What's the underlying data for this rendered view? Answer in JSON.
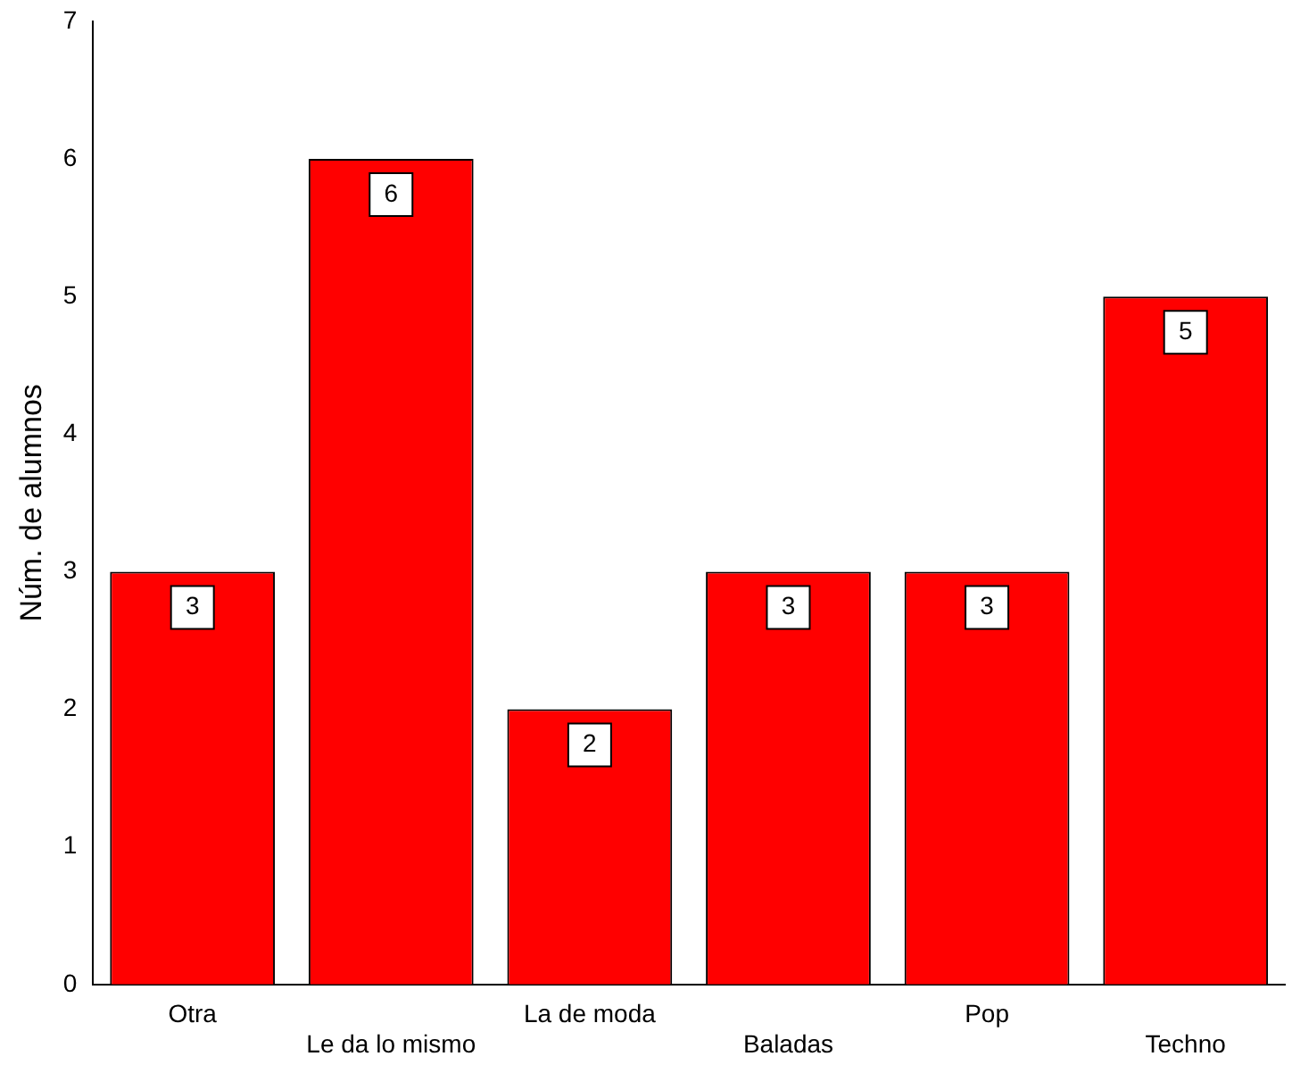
{
  "chart_data": {
    "type": "bar",
    "ylabel": "Núm. de alumnos",
    "categories": [
      "Otra",
      "Le da lo mismo",
      "La de moda",
      "Baladas",
      "Pop",
      "Techno"
    ],
    "values": [
      3,
      6,
      2,
      3,
      3,
      5
    ],
    "color": "#ff0000",
    "ylim": [
      0,
      7
    ],
    "yticks": [
      0,
      1,
      2,
      3,
      4,
      5,
      6,
      7
    ],
    "grid": false,
    "data_labels": true,
    "legend": false
  }
}
